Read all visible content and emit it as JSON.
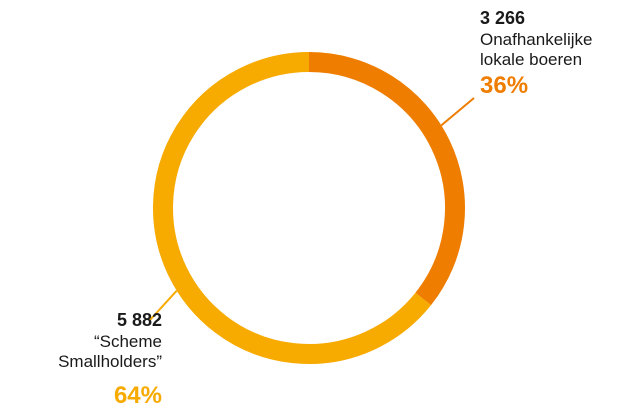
{
  "chart_data": {
    "type": "pie",
    "donut": true,
    "slices": [
      {
        "value_label": "3 266",
        "value": 3266,
        "label": "Onafhankelijke lokale boeren",
        "percent_label": "36%",
        "percent": 36,
        "color": "#EE7D00"
      },
      {
        "value_label": "5 882",
        "value": 5882,
        "label": "“Scheme Smallholders”",
        "percent_label": "64%",
        "percent": 64,
        "color": "#F7AA00"
      }
    ]
  }
}
